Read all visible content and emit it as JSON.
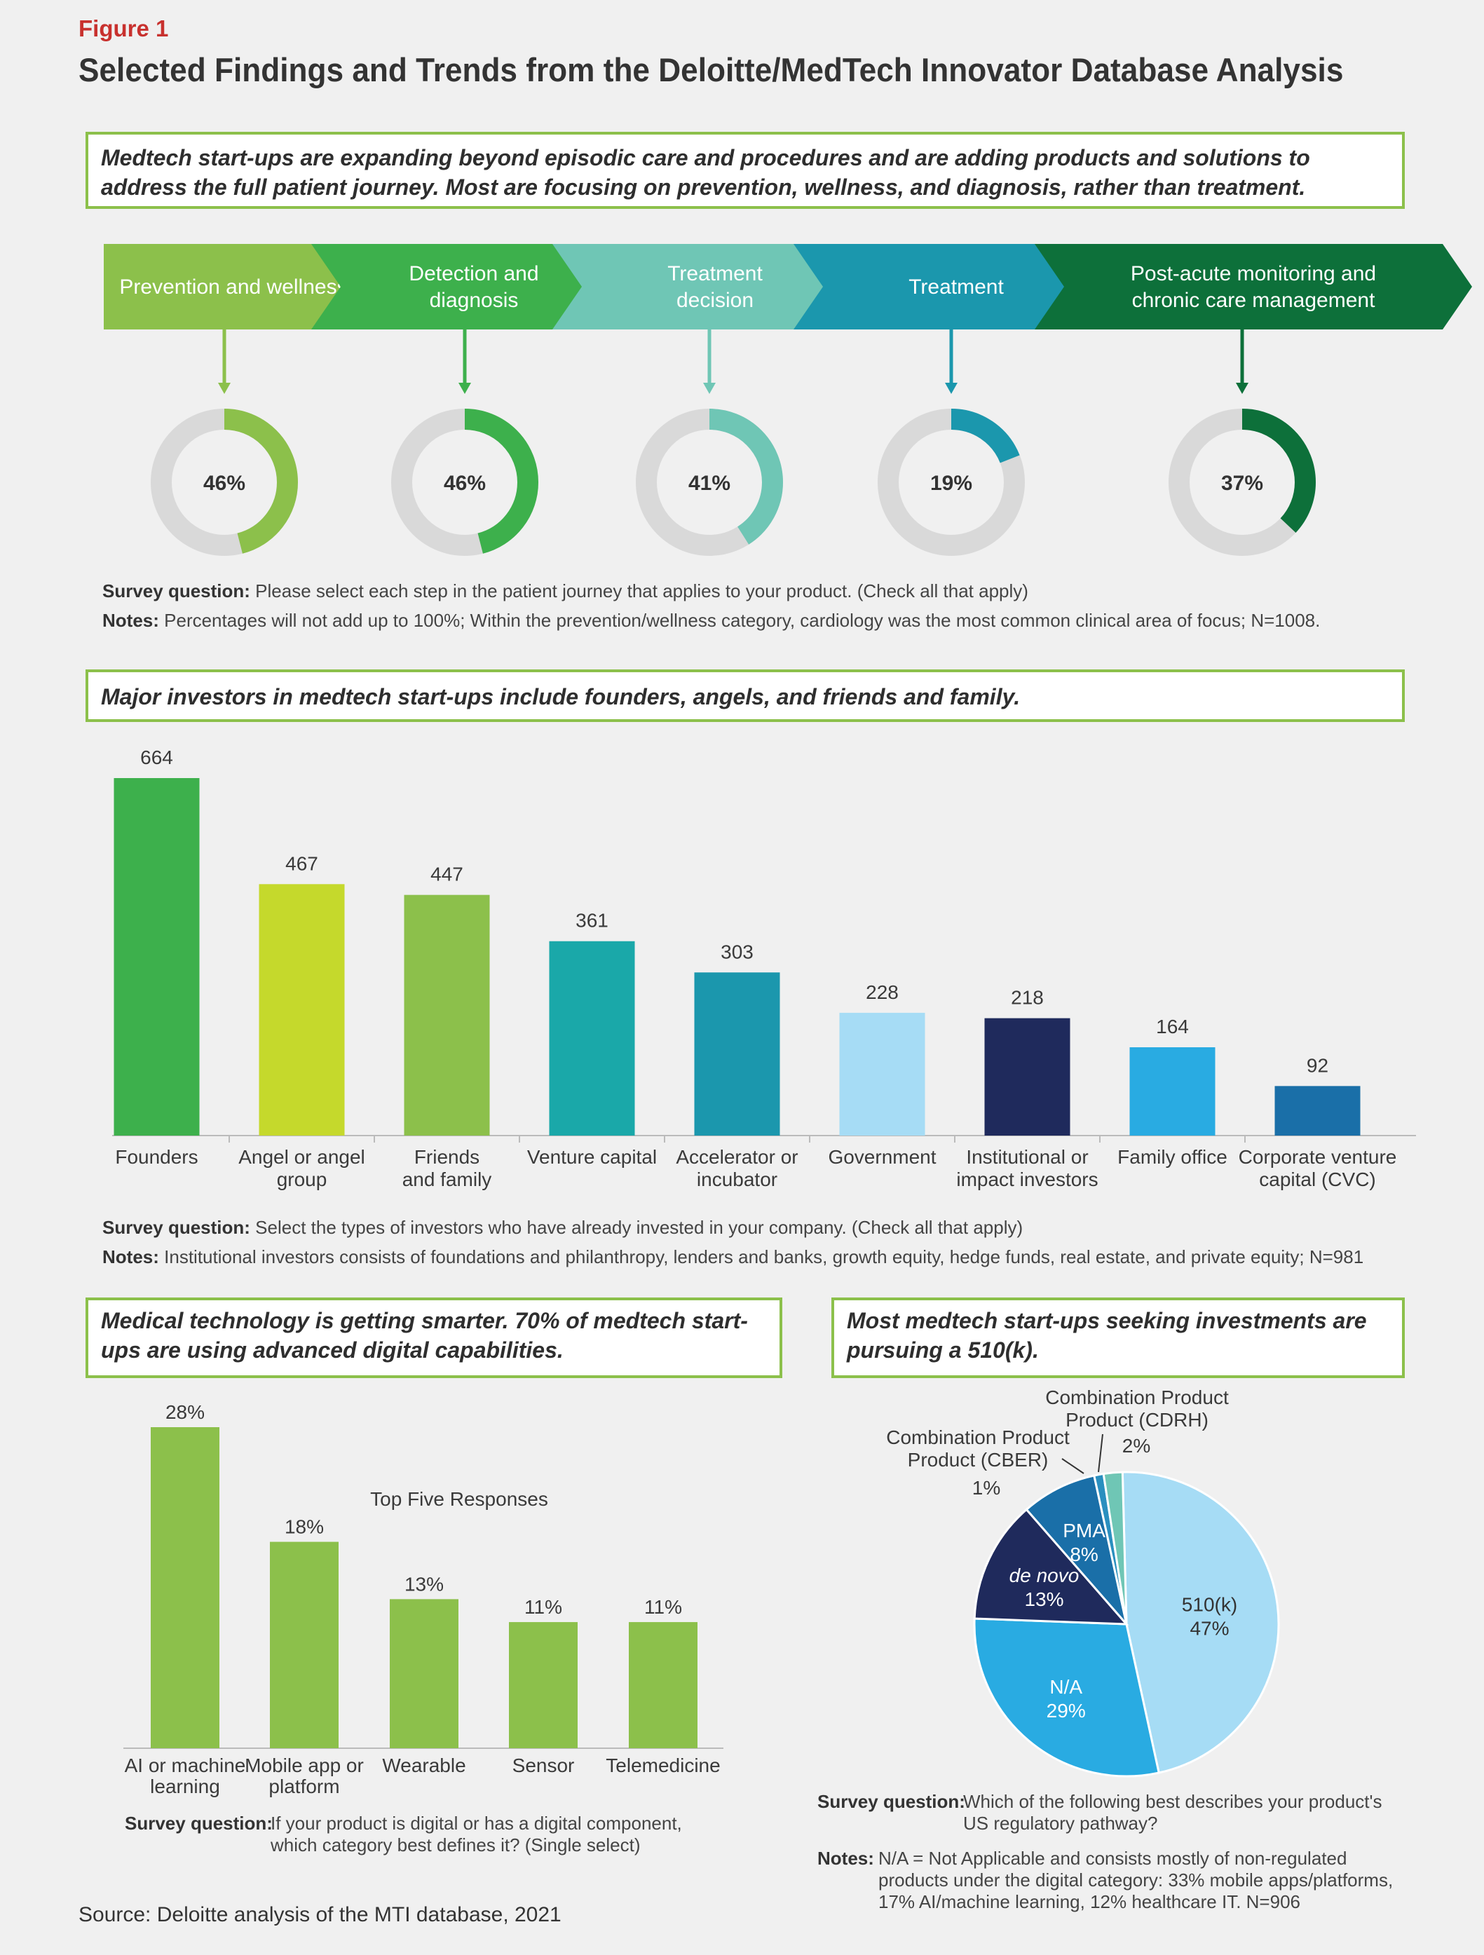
{
  "figure_label": "Figure 1",
  "title": "Selected Findings and Trends from the Deloitte/MedTech Innovator Database Analysis",
  "section1": {
    "callout": "Medtech start-ups are expanding beyond episodic care and procedures and are adding products and solutions to address the full patient journey. Most are focusing on prevention, wellness, and diagnosis, rather than treatment.",
    "steps": [
      {
        "lines": [
          "Prevention and wellness"
        ],
        "color": "#8cc04b",
        "value": 46,
        "label": "46%"
      },
      {
        "lines": [
          "Detection and",
          "diagnosis"
        ],
        "color": "#3db04c",
        "value": 46,
        "label": "46%"
      },
      {
        "lines": [
          "Treatment",
          "decision"
        ],
        "color": "#6fc6b5",
        "value": 41,
        "label": "41%"
      },
      {
        "lines": [
          "Treatment"
        ],
        "color": "#1b97ad",
        "value": 19,
        "label": "19%"
      },
      {
        "lines": [
          "Post-acute monitoring and",
          "chronic care management"
        ],
        "color": "#0d703a",
        "value": 37,
        "label": "37%"
      }
    ],
    "survey_label": "Survey question:",
    "survey_text": "Please select each step in the patient journey that applies to your product. (Check all that apply)",
    "notes_label": "Notes:",
    "notes_text": "Percentages will not add up to 100%; Within the prevention/wellness category, cardiology was the most common clinical area of focus; N=1008."
  },
  "section2": {
    "callout": "Major investors in medtech start-ups include founders, angels, and friends and family.",
    "survey_label": "Survey question:",
    "survey_text": "Select the types of investors who have already invested in your company. (Check all that apply)",
    "notes_label": "Notes:",
    "notes_text": "Institutional investors consists of foundations and philanthropy, lenders and banks, growth equity, hedge funds, real estate, and private equity; N=981"
  },
  "section3": {
    "callout": "Medical technology is getting smarter. 70% of medtech start-ups are using advanced digital capabilities.",
    "survey_label": "Survey question:",
    "survey_text_lines": [
      "If your product is digital or has a digital component,",
      "which category best defines it? (Single select)"
    ]
  },
  "section4": {
    "callout": "Most medtech start-ups seeking investments are pursuing a 510(k).",
    "survey_label": "Survey question:",
    "survey_text_lines": [
      "Which of the following best describes your product's",
      "US regulatory pathway?"
    ],
    "notes_label": "Notes:",
    "notes_text_lines": [
      "N/A = Not Applicable and consists mostly of non-regulated",
      "products under the digital category: 33% mobile apps/platforms,",
      "17%  AI/machine learning, 12% healthcare IT. N=906"
    ]
  },
  "source": "Source: Deloitte analysis of the MTI database, 2021",
  "chart_data": [
    {
      "type": "pie",
      "chart_id": "journey",
      "categories": [
        "Prevention and wellness",
        "Detection and diagnosis",
        "Treatment decision",
        "Treatment",
        "Post-acute monitoring and chronic care management"
      ],
      "values": [
        46,
        46,
        41,
        19,
        37
      ]
    },
    {
      "type": "bar",
      "chart_id": "investors",
      "categories": [
        [
          "Founders"
        ],
        [
          "Angel or angel",
          "group"
        ],
        [
          "Friends",
          "and family"
        ],
        [
          "Venture capital"
        ],
        [
          "Accelerator or",
          "incubator"
        ],
        [
          "Government"
        ],
        [
          "Institutional or",
          "impact investors"
        ],
        [
          "Family office"
        ],
        [
          "Corporate venture",
          "capital (CVC)"
        ]
      ],
      "values": [
        664,
        467,
        447,
        361,
        303,
        228,
        218,
        164,
        92
      ],
      "value_labels": [
        "664",
        "467",
        "447",
        "361",
        "303",
        "228",
        "218",
        "164",
        "92"
      ],
      "colors": [
        "#3db04c",
        "#c5d92c",
        "#8cc04b",
        "#1aa8a9",
        "#1b97ad",
        "#a6dcf5",
        "#1f2a5c",
        "#29abe2",
        "#1a6fa8"
      ],
      "ylim": [
        0,
        664
      ]
    },
    {
      "type": "bar",
      "chart_id": "digital",
      "annotation": "Top Five Responses",
      "categories": [
        [
          "AI or machine",
          "learning"
        ],
        [
          "Mobile app or",
          "platform"
        ],
        [
          "Wearable"
        ],
        [
          "Sensor"
        ],
        [
          "Telemedicine"
        ]
      ],
      "values": [
        28,
        18,
        13,
        11,
        11
      ],
      "value_labels": [
        "28%",
        "18%",
        "13%",
        "11%",
        "11%"
      ],
      "color": "#8cc04b",
      "ylim": [
        0,
        28
      ]
    },
    {
      "type": "pie",
      "chart_id": "pathway",
      "slices": [
        {
          "name": "510(k)",
          "value": 47,
          "label": "47%",
          "color": "#a6dcf5"
        },
        {
          "name": "N/A",
          "value": 29,
          "label": "29%",
          "color": "#29abe2"
        },
        {
          "name": "de novo",
          "value": 13,
          "label": "13%",
          "color": "#1f2a5c"
        },
        {
          "name": "PMA",
          "value": 8,
          "label": "8%",
          "color": "#1a6fa8"
        },
        {
          "name": "Combination Product (CBER)",
          "value": 1,
          "label": "1%",
          "color": "#2a8fbf"
        },
        {
          "name": "Combination Product (CDRH)",
          "value": 2,
          "label": "2%",
          "color": "#6fc6b5"
        }
      ]
    }
  ]
}
